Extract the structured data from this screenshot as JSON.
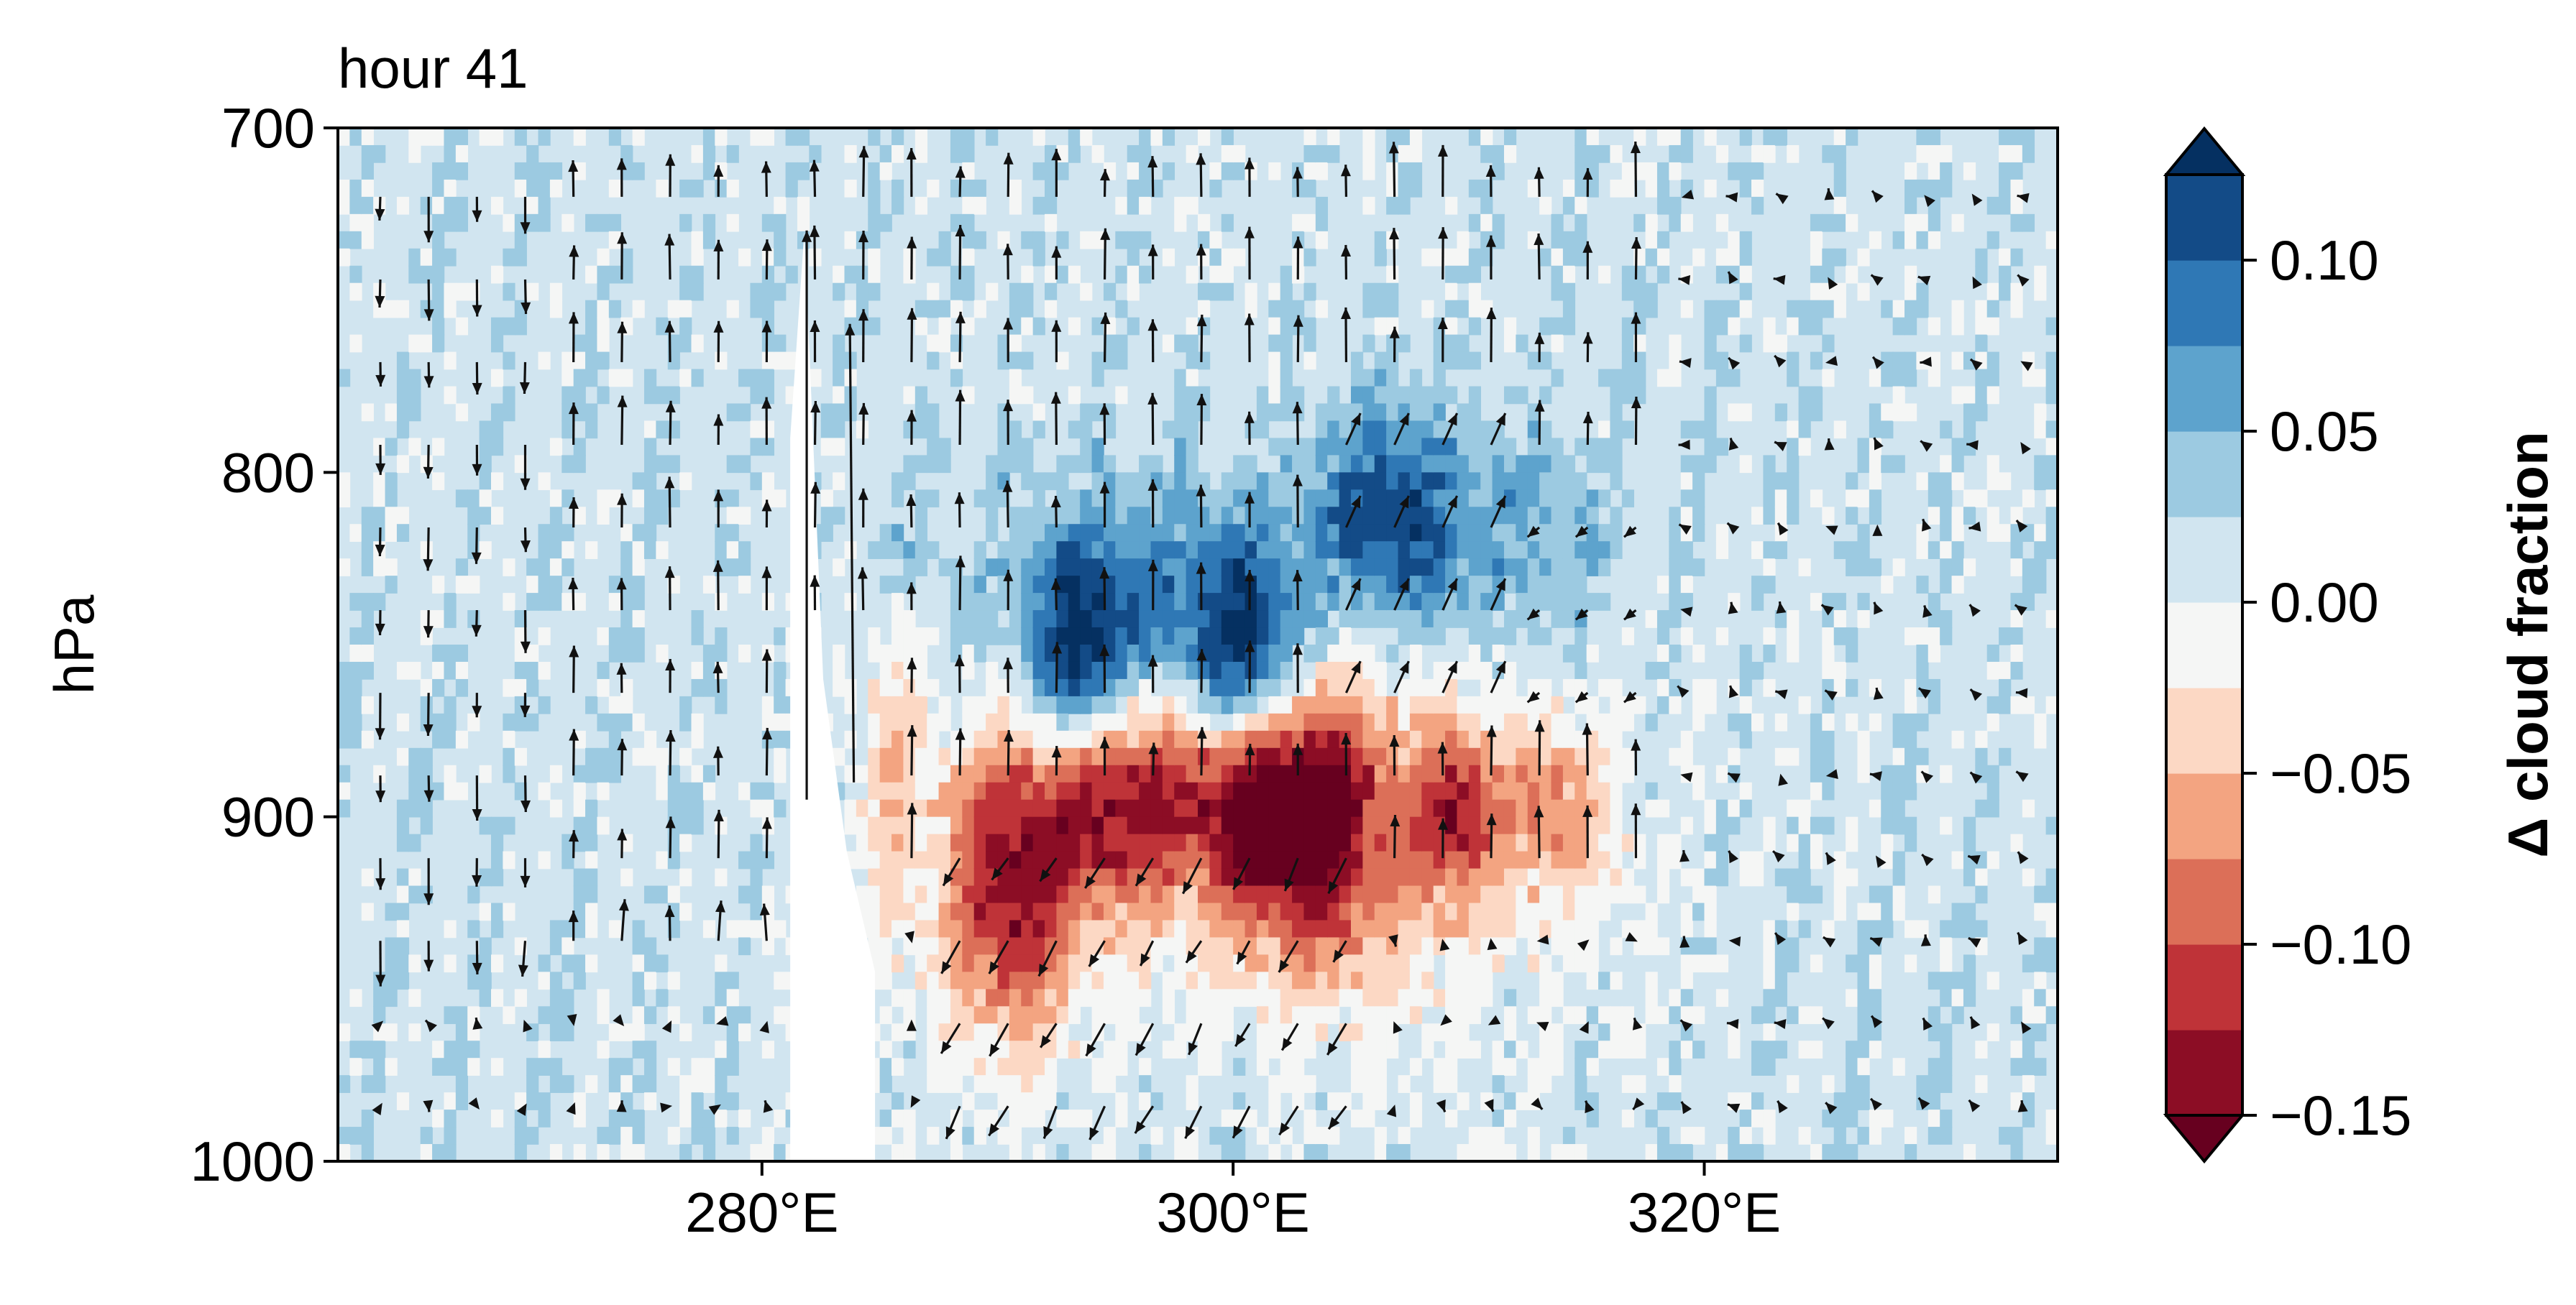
{
  "chart_data": {
    "type": "heatmap",
    "subtype": "filled-contour with wind vectors (vertical cross-section)",
    "title": "hour 41",
    "xlabel": "",
    "ylabel": "hPa",
    "xlim": [
      262,
      335
    ],
    "ylim": [
      1000,
      700
    ],
    "y_axis_inverted": true,
    "x_ticks": [
      280,
      300,
      320
    ],
    "x_tick_labels": [
      "280°E",
      "300°E",
      "320°E"
    ],
    "y_ticks": [
      700,
      800,
      900,
      1000
    ],
    "y_tick_labels": [
      "700",
      "800",
      "900",
      "1000"
    ],
    "grid": false,
    "colormap": "RdBu",
    "colorbar": {
      "label": "Δ cloud fraction",
      "levels": [
        -0.15,
        -0.125,
        -0.1,
        -0.075,
        -0.05,
        -0.025,
        0.0,
        0.025,
        0.05,
        0.075,
        0.1,
        0.125
      ],
      "colors": [
        "#8c0d25",
        "#bf3338",
        "#dc6f58",
        "#f3a481",
        "#fcd8c4",
        "#f5f6f5",
        "#d1e5f0",
        "#9ccae1",
        "#5da3cd",
        "#2f78b5",
        "#134b87"
      ],
      "extend_below_color": "#67001f",
      "extend_above_color": "#053061",
      "ticks": [
        -0.15,
        -0.1,
        -0.05,
        0.0,
        0.05,
        0.1
      ],
      "tick_labels": [
        "−0.15",
        "−0.10",
        "−0.05",
        "0.00",
        "0.05",
        "0.10"
      ]
    },
    "terrain": {
      "description": "white masked region (below surface) near 280–285°E",
      "points": [
        [
          281.2,
          1000
        ],
        [
          281.2,
          790
        ],
        [
          281.8,
          730
        ],
        [
          282.6,
          860
        ],
        [
          283.6,
          910
        ],
        [
          284.8,
          945
        ],
        [
          284.8,
          1000
        ]
      ]
    },
    "anomaly_regions": [
      {
        "name": "positive cloud anomaly (upper band)",
        "lon_range": [
          291,
          314
        ],
        "p_range": [
          775,
          880
        ],
        "max": 0.12
      },
      {
        "name": "negative cloud anomaly (lower band)",
        "lon_range": [
          284,
          318
        ],
        "p_range": [
          850,
          960
        ],
        "min": -0.16
      }
    ],
    "quiver": {
      "description": "wind vectors; long upward arrows near 281–284°E, downward/converging arrows below 900 hPa near 288–305°E",
      "sample_vectors": [
        {
          "lon": 281.9,
          "p": 705,
          "u": 0.0,
          "w": -1.0
        },
        {
          "lon": 283.9,
          "p": 760,
          "u": 0.0,
          "w": -0.9
        },
        {
          "lon": 293.4,
          "p": 850,
          "u": 0.1,
          "w": 0.6
        },
        {
          "lon": 305.5,
          "p": 800,
          "u": 0.2,
          "w": 0.4
        },
        {
          "lon": 307.0,
          "p": 860,
          "u": 0.15,
          "w": 0.35
        },
        {
          "lon": 290.0,
          "p": 960,
          "u": -0.2,
          "w": -0.2
        },
        {
          "lon": 300.0,
          "p": 975,
          "u": -0.1,
          "w": -0.1
        }
      ]
    }
  }
}
